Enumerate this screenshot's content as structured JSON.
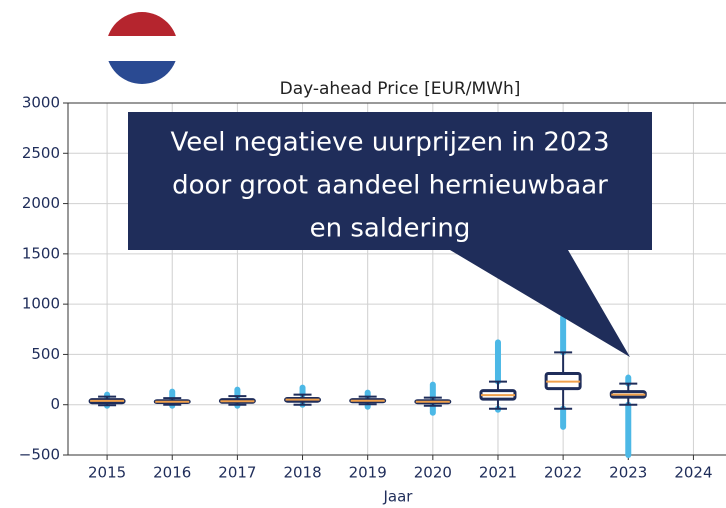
{
  "chart_data": {
    "type": "box",
    "title": "Day-ahead Price [EUR/MWh]",
    "xlabel": "Jaar",
    "annotation": [
      "Veel negatieve uurprijzen in 2023",
      "door groot aandeel hernieuwbaar",
      "en saldering"
    ],
    "box_color": "#1f2d5a",
    "median_color": "#f0a04b",
    "flier_color": "#4cb8e6",
    "boxes": [
      {
        "x": 2015,
        "whislo": -5,
        "q1": 20,
        "med": 38,
        "q3": 50,
        "whishi": 80,
        "fliermin": -10,
        "fliermax": 100
      },
      {
        "x": 2016,
        "whislo": 0,
        "q1": 22,
        "med": 30,
        "q3": 40,
        "whishi": 65,
        "fliermin": -10,
        "fliermax": 130
      },
      {
        "x": 2017,
        "whislo": 0,
        "q1": 25,
        "med": 35,
        "q3": 50,
        "whishi": 85,
        "fliermin": -10,
        "fliermax": 150
      },
      {
        "x": 2018,
        "whislo": 0,
        "q1": 35,
        "med": 50,
        "q3": 62,
        "whishi": 100,
        "fliermin": 0,
        "fliermax": 170
      },
      {
        "x": 2019,
        "whislo": 5,
        "q1": 30,
        "med": 40,
        "q3": 50,
        "whishi": 80,
        "fliermin": -20,
        "fliermax": 120
      },
      {
        "x": 2020,
        "whislo": -10,
        "q1": 20,
        "med": 30,
        "q3": 40,
        "whishi": 70,
        "fliermin": -80,
        "fliermax": 200
      },
      {
        "x": 2021,
        "whislo": -40,
        "q1": 55,
        "med": 95,
        "q3": 140,
        "whishi": 230,
        "fliermin": -50,
        "fliermax": 620
      },
      {
        "x": 2022,
        "whislo": -40,
        "q1": 160,
        "med": 230,
        "q3": 310,
        "whishi": 520,
        "fliermin": -220,
        "fliermax": 870
      },
      {
        "x": 2023,
        "whislo": 0,
        "q1": 75,
        "med": 100,
        "q3": 130,
        "whishi": 210,
        "fliermin": -500,
        "fliermax": 270
      }
    ],
    "xlim": [
      2014.4,
      2024.5
    ],
    "xticks": [
      2015,
      2016,
      2017,
      2018,
      2019,
      2020,
      2021,
      2022,
      2023,
      2024
    ],
    "ylim": [
      -500,
      3000
    ],
    "yticks": [
      {
        "value": -500,
        "label": "−500"
      },
      0,
      500,
      1000,
      1500,
      2000,
      2500,
      3000
    ],
    "grid": true
  }
}
